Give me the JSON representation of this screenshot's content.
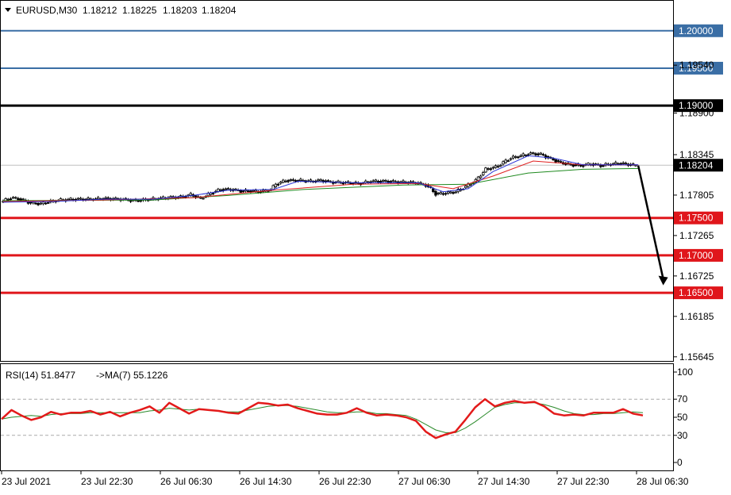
{
  "header": {
    "symbol_label": "EURUSD,M30",
    "ohlc": [
      "1.18212",
      "1.18225",
      "1.18203",
      "1.18204"
    ]
  },
  "rsi_header": {
    "rsi_label": "RSI(14) 51.8477",
    "ma_label": "->MA(7) 55.1226"
  },
  "colors": {
    "resistance": "#3a6ea5",
    "pivot": "#000000",
    "support": "#e0161b",
    "candle": "#000000",
    "ma_blue": "#2b35d6",
    "ma_red": "#e02020",
    "ma_green": "#1f8a1f",
    "rsi_line": "#e31a1a",
    "rsi_ma": "#2a8a2a"
  },
  "chart_data": [
    {
      "type": "candlestick",
      "symbol": "EURUSD",
      "timeframe": "M30",
      "ylim": [
        1.1559,
        1.204
      ],
      "price_ticks": [
        "1.19540",
        "1.18900",
        "1.18345",
        "1.17805",
        "1.17265",
        "1.16725",
        "1.16185",
        "1.15645"
      ],
      "x_tick_labels": [
        "23 Jul 2021",
        "23 Jul 22:30",
        "26 Jul 06:30",
        "26 Jul 14:30",
        "26 Jul 22:30",
        "27 Jul 06:30",
        "27 Jul 14:30",
        "27 Jul 22:30",
        "28 Jul 06:30"
      ],
      "current_price": "1.18204",
      "levels": [
        {
          "label": "1.20000",
          "value": 1.2,
          "kind": "resistance"
        },
        {
          "label": "1.19500",
          "value": 1.195,
          "kind": "resistance"
        },
        {
          "label": "1.19000",
          "value": 1.19,
          "kind": "pivot"
        },
        {
          "label": "1.17500",
          "value": 1.175,
          "kind": "support"
        },
        {
          "label": "1.17000",
          "value": 1.17,
          "kind": "support"
        },
        {
          "label": "1.16500",
          "value": 1.165,
          "kind": "support"
        }
      ],
      "close_path": [
        [
          0,
          1.1771
        ],
        [
          4,
          1.1777
        ],
        [
          8,
          1.1775
        ],
        [
          12,
          1.177
        ],
        [
          16,
          1.1769
        ],
        [
          20,
          1.1772
        ],
        [
          24,
          1.1774
        ],
        [
          30,
          1.1775
        ],
        [
          36,
          1.1775
        ],
        [
          42,
          1.1776
        ],
        [
          48,
          1.1775
        ],
        [
          54,
          1.1773
        ],
        [
          60,
          1.1775
        ],
        [
          66,
          1.1777
        ],
        [
          72,
          1.1778
        ],
        [
          76,
          1.1781
        ],
        [
          80,
          1.1776
        ],
        [
          84,
          1.1783
        ],
        [
          88,
          1.1788
        ],
        [
          92,
          1.1788
        ],
        [
          96,
          1.1786
        ],
        [
          100,
          1.1786
        ],
        [
          104,
          1.1785
        ],
        [
          108,
          1.1788
        ],
        [
          110,
          1.1795
        ],
        [
          114,
          1.18
        ],
        [
          120,
          1.18
        ],
        [
          124,
          1.1799
        ],
        [
          128,
          1.18
        ],
        [
          132,
          1.1798
        ],
        [
          138,
          1.1797
        ],
        [
          144,
          1.1796
        ],
        [
          148,
          1.1799
        ],
        [
          154,
          1.1799
        ],
        [
          160,
          1.1798
        ],
        [
          166,
          1.1797
        ],
        [
          170,
          1.1794
        ],
        [
          172,
          1.1789
        ],
        [
          174,
          1.1782
        ],
        [
          178,
          1.1783
        ],
        [
          182,
          1.1785
        ],
        [
          186,
          1.1792
        ],
        [
          190,
          1.18
        ],
        [
          194,
          1.1815
        ],
        [
          198,
          1.1818
        ],
        [
          200,
          1.1822
        ],
        [
          204,
          1.183
        ],
        [
          208,
          1.1833
        ],
        [
          212,
          1.1836
        ],
        [
          216,
          1.1835
        ],
        [
          220,
          1.1829
        ],
        [
          224,
          1.1824
        ],
        [
          228,
          1.1821
        ],
        [
          232,
          1.182
        ],
        [
          236,
          1.1822
        ],
        [
          240,
          1.182
        ],
        [
          244,
          1.1822
        ],
        [
          248,
          1.1823
        ],
        [
          252,
          1.1821
        ],
        [
          254,
          1.182
        ]
      ],
      "ma_fast": [
        [
          0,
          1.1771
        ],
        [
          20,
          1.1772
        ],
        [
          40,
          1.1775
        ],
        [
          60,
          1.1775
        ],
        [
          76,
          1.178
        ],
        [
          90,
          1.1787
        ],
        [
          108,
          1.1788
        ],
        [
          118,
          1.1799
        ],
        [
          140,
          1.1797
        ],
        [
          166,
          1.1797
        ],
        [
          176,
          1.1785
        ],
        [
          186,
          1.1789
        ],
        [
          196,
          1.1812
        ],
        [
          210,
          1.1833
        ],
        [
          220,
          1.183
        ],
        [
          232,
          1.1821
        ],
        [
          254,
          1.1821
        ]
      ],
      "ma_mid": [
        [
          0,
          1.1772
        ],
        [
          40,
          1.1774
        ],
        [
          76,
          1.1777
        ],
        [
          108,
          1.1787
        ],
        [
          140,
          1.1795
        ],
        [
          166,
          1.1796
        ],
        [
          180,
          1.1789
        ],
        [
          196,
          1.1806
        ],
        [
          212,
          1.1826
        ],
        [
          232,
          1.1821
        ],
        [
          254,
          1.1821
        ]
      ],
      "ma_slow": [
        [
          0,
          1.1773
        ],
        [
          60,
          1.1774
        ],
        [
          90,
          1.178
        ],
        [
          120,
          1.1788
        ],
        [
          160,
          1.1794
        ],
        [
          186,
          1.1795
        ],
        [
          210,
          1.181
        ],
        [
          232,
          1.1815
        ],
        [
          254,
          1.1816
        ]
      ],
      "forecast_arrow": {
        "from": [
          254,
          1.182
        ],
        "to": [
          264,
          1.166
        ]
      }
    },
    {
      "type": "line",
      "indicator": "RSI",
      "title": "RSI(14) 51.8477",
      "ma_title": "->MA(7) 55.1226",
      "ylim": [
        0,
        100
      ],
      "y_ticks": [
        "100",
        "70",
        "50",
        "30",
        "0"
      ],
      "levels": [
        70,
        30
      ],
      "rsi_values": [
        48,
        58,
        52,
        47,
        50,
        56,
        53,
        55,
        55,
        57,
        53,
        56,
        51,
        55,
        58,
        62,
        55,
        66,
        60,
        54,
        59,
        58,
        57,
        55,
        54,
        60,
        66,
        65,
        63,
        64,
        60,
        57,
        54,
        53,
        53,
        55,
        60,
        55,
        52,
        53,
        52,
        50,
        46,
        34,
        27,
        31,
        34,
        47,
        61,
        70,
        62,
        66,
        68,
        66,
        67,
        62,
        54,
        52,
        53,
        52,
        55,
        55,
        55,
        59,
        54,
        52
      ],
      "rsi_ma_values": [
        48,
        50,
        51,
        52,
        51,
        53,
        54,
        54,
        54,
        55,
        55,
        55,
        55,
        55,
        55,
        57,
        58,
        60,
        59,
        58,
        59,
        58,
        57,
        56,
        56,
        58,
        60,
        62,
        63,
        63,
        62,
        60,
        58,
        56,
        55,
        55,
        56,
        56,
        54,
        54,
        53,
        52,
        48,
        42,
        36,
        33,
        33,
        38,
        45,
        53,
        61,
        64,
        66,
        66,
        66,
        64,
        61,
        57,
        54,
        53,
        53,
        54,
        54,
        55,
        56,
        55
      ]
    }
  ]
}
